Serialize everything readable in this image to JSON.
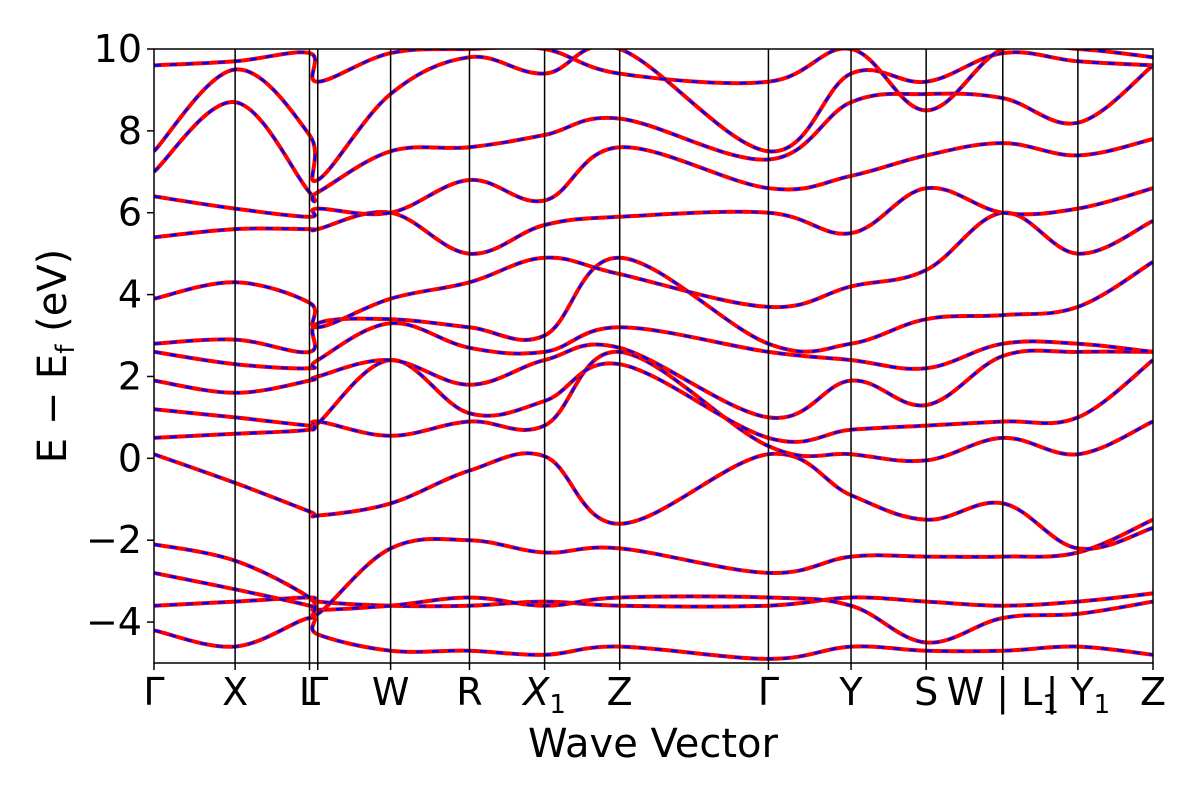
{
  "chart_data": {
    "type": "line",
    "xlabel": "Wave Vector",
    "ylabel": "E − E_f (eV)",
    "ylabel_parts": {
      "main": "E − E",
      "sub": "f",
      "unit": " (eV)"
    },
    "ylim": [
      -5,
      10
    ],
    "yticks": [
      -4,
      -2,
      0,
      2,
      4,
      6,
      8,
      10
    ],
    "ytick_labels": [
      "−4",
      "−2",
      "0",
      "2",
      "4",
      "6",
      "8",
      "10"
    ],
    "xlim": [
      0,
      13.3
    ],
    "k_points": [
      {
        "x": 0.0,
        "label": "Γ"
      },
      {
        "x": 1.08,
        "label": "X"
      },
      {
        "x": 2.07,
        "label": "L"
      },
      {
        "x": 2.18,
        "label": "Γ"
      },
      {
        "x": 3.15,
        "label": "W"
      },
      {
        "x": 4.2,
        "label": "R"
      },
      {
        "x": 5.2,
        "label": "X",
        "sub": "1"
      },
      {
        "x": 6.2,
        "label": "Z"
      },
      {
        "x": 8.18,
        "label": "Γ"
      },
      {
        "x": 9.28,
        "label": "Y"
      },
      {
        "x": 10.28,
        "label": "S"
      },
      {
        "x": 11.3,
        "label": "W | L",
        "sub": "1"
      },
      {
        "x": 12.3,
        "label": "| Y",
        "sub": "1"
      },
      {
        "x": 13.3,
        "label": "Z"
      }
    ],
    "legend": "none",
    "grid": false,
    "series": [
      {
        "style": "solid",
        "color": "#ff0000"
      },
      {
        "style": "dashed",
        "color": "#0000ff"
      }
    ],
    "bands": [
      [
        -4.2,
        -4.6,
        -3.9,
        -4.3,
        -4.7,
        -4.7,
        -4.8,
        -4.6,
        -4.9,
        -4.6,
        -4.7,
        -4.7,
        -4.6,
        -4.8
      ],
      [
        -3.6,
        -3.5,
        -3.4,
        -3.5,
        -3.6,
        -3.6,
        -3.5,
        -3.6,
        -3.6,
        -3.4,
        -3.5,
        -3.6,
        -3.5,
        -3.3
      ],
      [
        -2.8,
        -3.2,
        -3.6,
        -3.7,
        -3.6,
        -3.4,
        -3.6,
        -3.4,
        -3.4,
        -3.6,
        -4.5,
        -3.9,
        -3.8,
        -3.5
      ],
      [
        -2.1,
        -2.5,
        -3.4,
        -3.8,
        -2.2,
        -2.0,
        -2.3,
        -2.2,
        -2.8,
        -2.4,
        -2.4,
        -2.4,
        -2.3,
        -1.5
      ],
      [
        0.1,
        -0.6,
        -1.3,
        -1.4,
        -1.1,
        -0.3,
        0.05,
        -1.6,
        0.1,
        -0.9,
        -1.5,
        -1.1,
        -2.2,
        -1.7
      ],
      [
        0.5,
        0.6,
        0.7,
        0.9,
        0.55,
        0.9,
        0.8,
        2.6,
        0.3,
        0.1,
        -0.05,
        0.5,
        0.1,
        0.9
      ],
      [
        1.2,
        1.0,
        0.8,
        0.85,
        2.4,
        1.1,
        1.4,
        2.3,
        0.5,
        0.7,
        0.8,
        0.9,
        1.0,
        2.4
      ],
      [
        1.9,
        1.6,
        1.9,
        2.0,
        2.4,
        1.8,
        2.4,
        2.7,
        1.0,
        1.9,
        1.3,
        2.5,
        2.6,
        2.6
      ],
      [
        2.6,
        2.3,
        2.2,
        2.4,
        3.3,
        2.7,
        2.6,
        3.2,
        2.6,
        2.4,
        2.2,
        2.8,
        2.8,
        2.6
      ],
      [
        2.8,
        2.9,
        2.6,
        3.3,
        3.4,
        3.2,
        3.0,
        4.9,
        2.8,
        2.8,
        3.4,
        3.5,
        3.7,
        4.8
      ],
      [
        3.9,
        4.3,
        3.8,
        3.2,
        3.9,
        4.3,
        4.9,
        4.5,
        3.7,
        4.2,
        4.6,
        6.0,
        5.0,
        5.8
      ],
      [
        5.4,
        5.6,
        5.6,
        5.6,
        6.0,
        5.0,
        5.7,
        5.9,
        6.0,
        5.5,
        6.6,
        6.0,
        6.1,
        6.6
      ],
      [
        6.4,
        6.1,
        5.9,
        6.1,
        6.0,
        6.8,
        6.3,
        7.6,
        6.6,
        6.9,
        7.4,
        7.7,
        7.4,
        7.8
      ],
      [
        7.0,
        8.7,
        6.5,
        6.5,
        7.5,
        7.6,
        7.9,
        8.3,
        7.3,
        8.7,
        8.9,
        8.8,
        8.2,
        9.6
      ],
      [
        7.5,
        9.5,
        7.9,
        6.8,
        8.9,
        9.8,
        9.4,
        10.0,
        7.5,
        9.4,
        9.2,
        9.9,
        9.7,
        9.6
      ],
      [
        9.6,
        9.7,
        9.9,
        9.2,
        9.9,
        10.0,
        10.0,
        9.4,
        9.2,
        10.0,
        8.5,
        10.0,
        10.0,
        9.8
      ]
    ]
  }
}
